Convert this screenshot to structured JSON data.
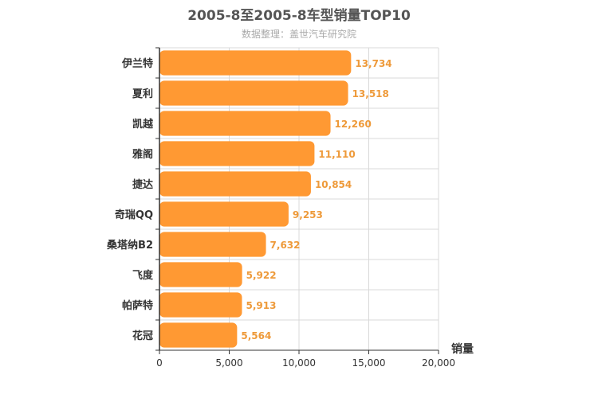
{
  "chart_data": {
    "type": "bar",
    "orientation": "horizontal",
    "title": "2005-8至2005-8车型销量TOP10",
    "subtitle": "数据整理：盖世汽车研究院",
    "categories": [
      "伊兰特",
      "夏利",
      "凯越",
      "雅阁",
      "捷达",
      "奇瑞QQ",
      "桑塔纳B2",
      "飞度",
      "帕萨特",
      "花冠"
    ],
    "values": [
      13734,
      13518,
      12260,
      11110,
      10854,
      9253,
      7632,
      5922,
      5913,
      5564
    ],
    "value_labels": [
      "13,734",
      "13,518",
      "12,260",
      "11,110",
      "10,854",
      "9,253",
      "7,632",
      "5,922",
      "5,913",
      "5,564"
    ],
    "value_axis_label": "销量",
    "xlim": [
      0,
      20000
    ],
    "x_ticks": [
      0,
      5000,
      10000,
      15000,
      20000
    ],
    "x_tick_labels": [
      "0",
      "5,000",
      "10,000",
      "15,000",
      "20,000"
    ],
    "grid": true,
    "bar_color": "#ff9933"
  }
}
